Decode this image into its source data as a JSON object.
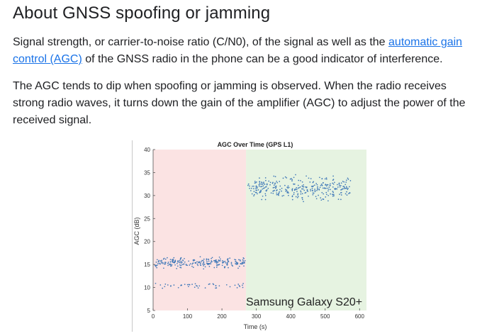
{
  "article": {
    "heading": "About GNSS spoofing or jamming",
    "p1_before": "Signal strength, or carrier-to-noise ratio (C/N0), of the signal as well as the ",
    "p1_link": "automatic gain control (AGC)",
    "p1_after": " of the GNSS radio in the phone can be a good indicator of interference.",
    "p2": "The AGC tends to dip when spoofing or jamming is observed. When the radio receives strong radio waves, it turns down the gain of the amplifier (AGC) to adjust the power of the received signal."
  },
  "colors": {
    "link": "#1a73e8",
    "region_jamming": "#fbe3e3",
    "region_normal": "#e6f3e1",
    "points": "#3f78b8"
  },
  "chart_data": {
    "type": "scatter",
    "title": "AGC Over Time (GPS L1)",
    "xlabel": "Time (s)",
    "ylabel": "AGC (dB)",
    "xlim": [
      0,
      620
    ],
    "ylim": [
      5,
      40
    ],
    "xticks": [
      0,
      100,
      200,
      300,
      400,
      500,
      600
    ],
    "yticks": [
      5,
      10,
      15,
      20,
      25,
      30,
      35,
      40
    ],
    "annotation": "Samsung Galaxy S20+",
    "regions": [
      {
        "x_from": 0,
        "x_to": 270,
        "color": "region_jamming"
      },
      {
        "x_from": 270,
        "x_to": 620,
        "color": "region_normal"
      }
    ],
    "clusters": [
      {
        "x_range": [
          5,
          270
        ],
        "y_center": 15.4,
        "y_spread": 1.6,
        "count": 240
      },
      {
        "x_range": [
          5,
          270
        ],
        "y_center": 10.4,
        "y_spread": 0.9,
        "count": 45
      },
      {
        "x_range": [
          275,
          575
        ],
        "y_center": 31.6,
        "y_spread": 3.4,
        "count": 320
      }
    ]
  }
}
